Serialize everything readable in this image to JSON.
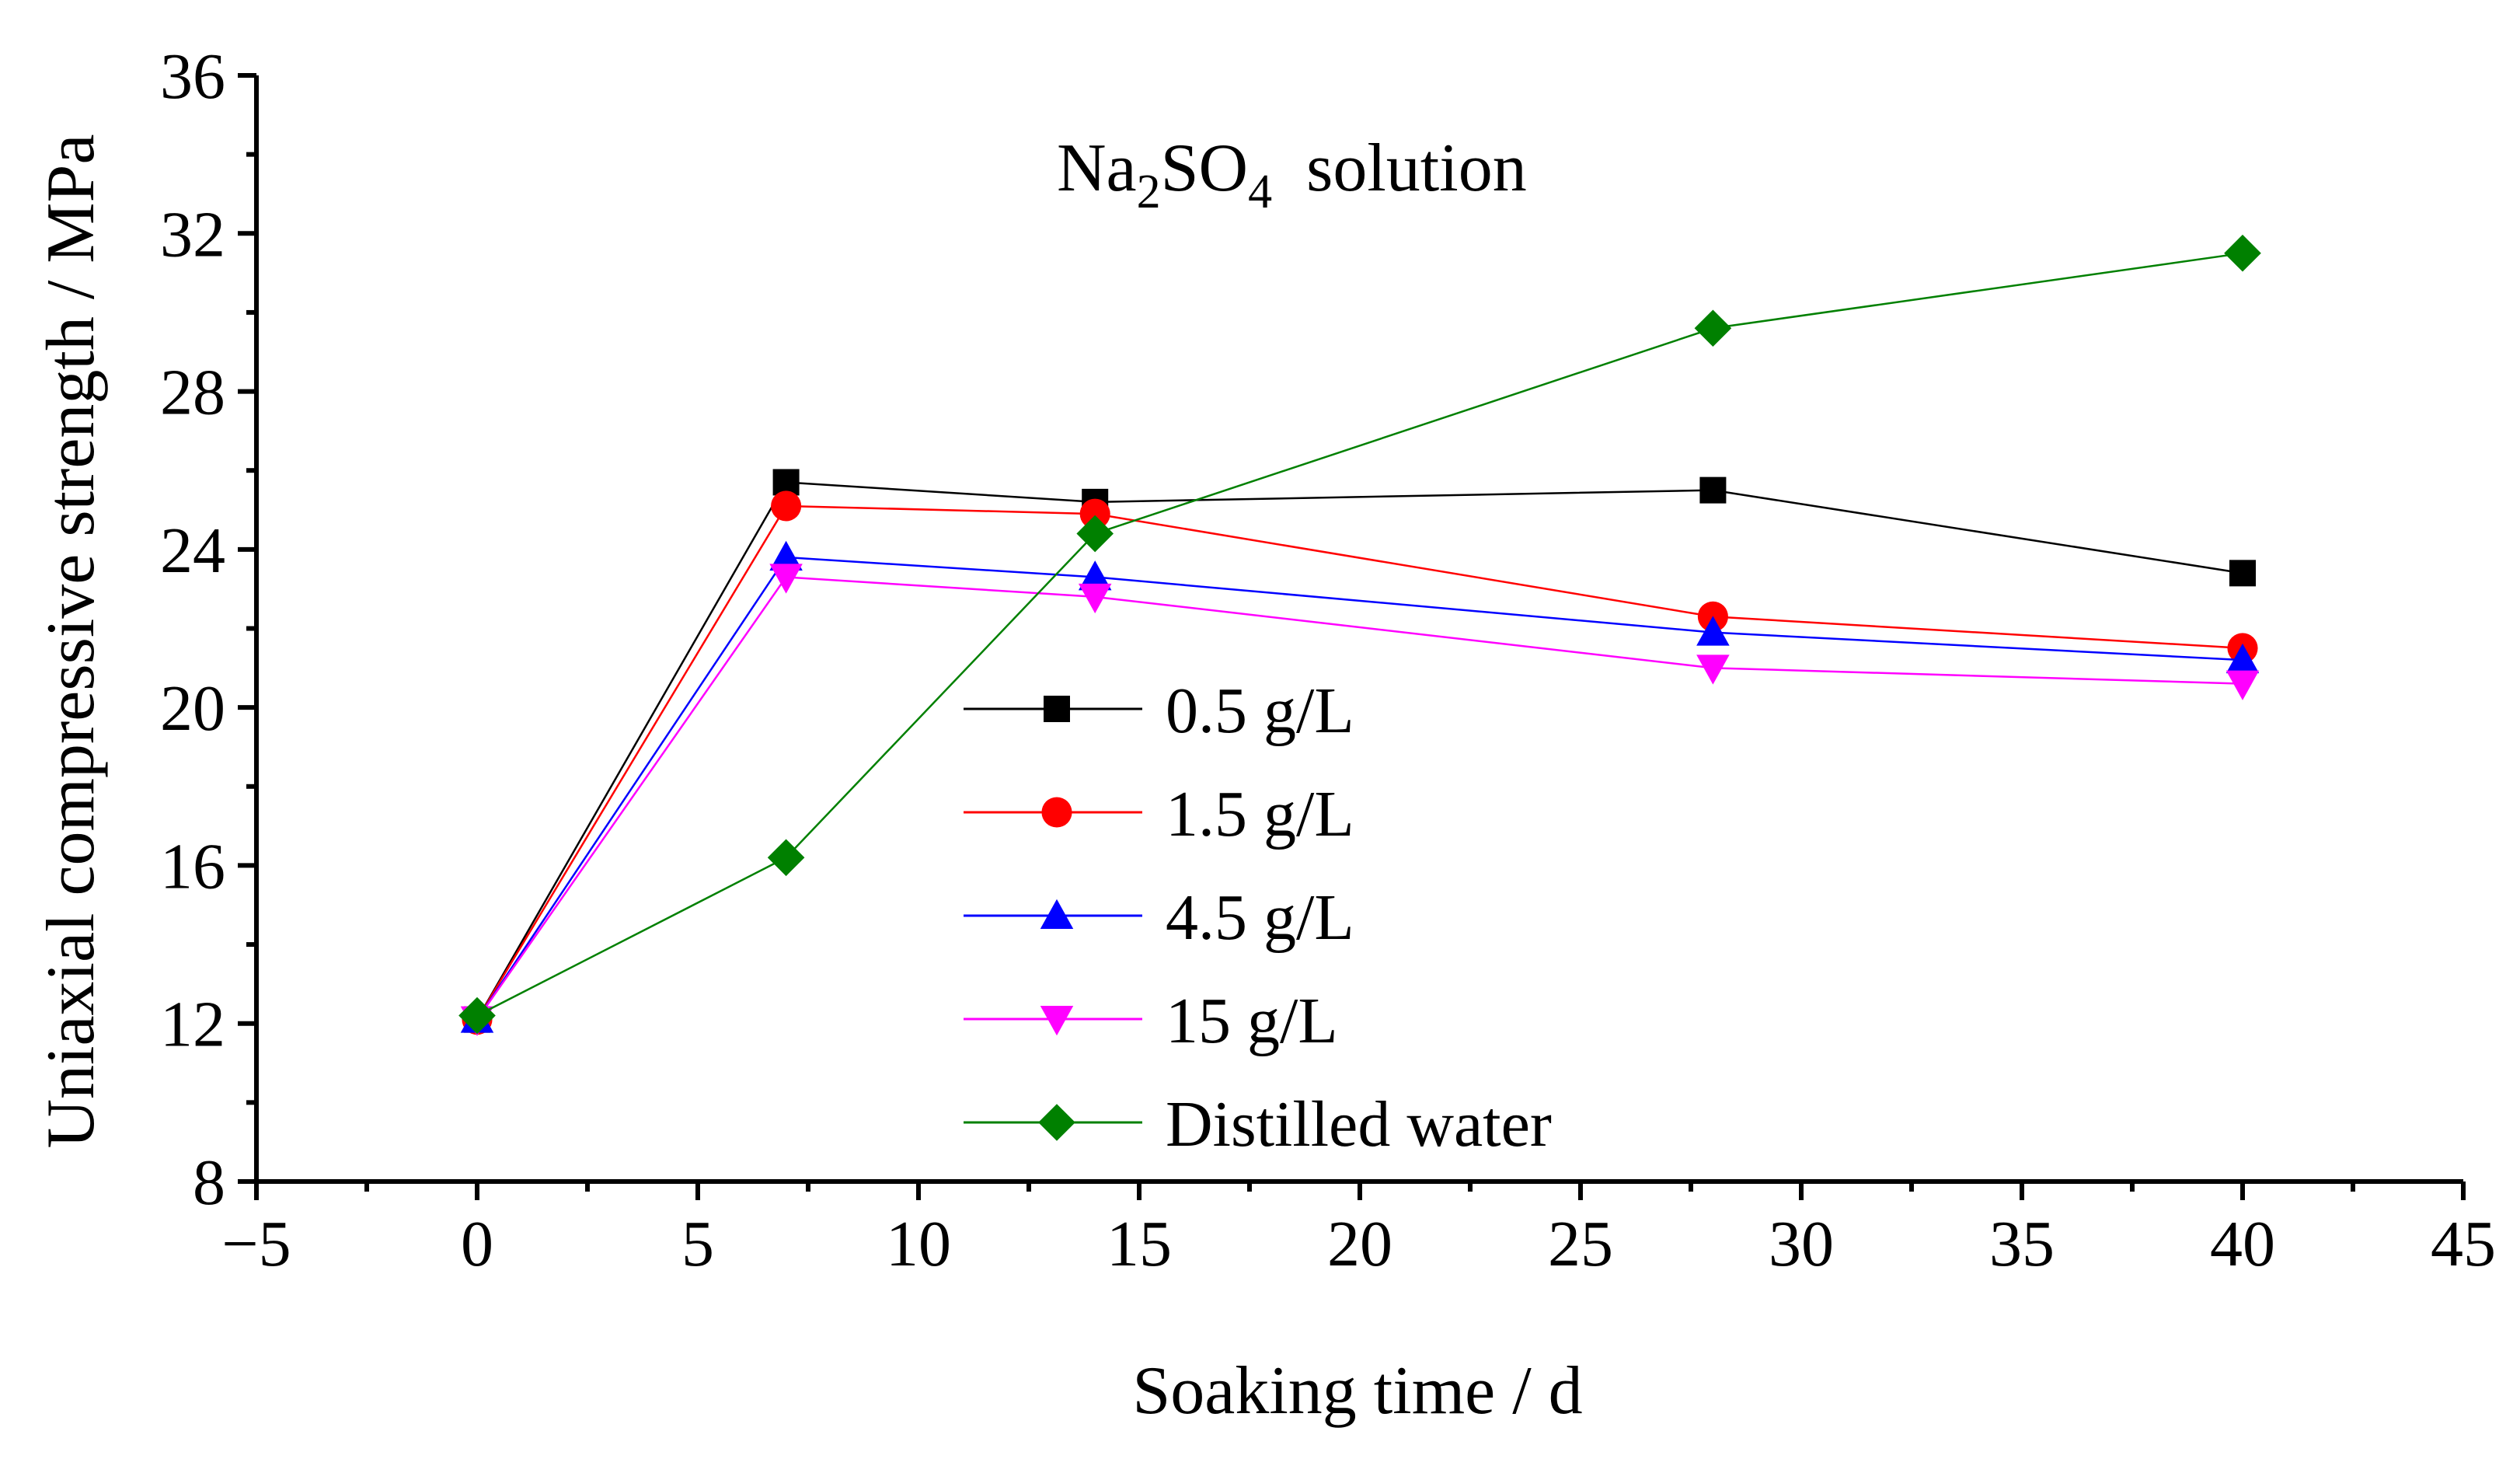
{
  "chart_data": {
    "type": "line",
    "title": "",
    "annotation": {
      "main": "Na",
      "sub1": "2",
      "mid": "SO",
      "sub2": "4",
      "tail": "  solution"
    },
    "xlabel": "Soaking time / d",
    "ylabel": "Uniaxial compressive strength  / MPa",
    "xlim": [
      -5,
      45
    ],
    "ylim": [
      8,
      36
    ],
    "xticks": [
      -5,
      0,
      5,
      10,
      15,
      20,
      25,
      30,
      35,
      40,
      45
    ],
    "xtick_labels": [
      "−5",
      "0",
      "5",
      "10",
      "15",
      "20",
      "25",
      "30",
      "35",
      "40",
      "45"
    ],
    "yticks": [
      8,
      12,
      16,
      20,
      24,
      28,
      32,
      36
    ],
    "ytick_labels": [
      "8",
      "12",
      "16",
      "20",
      "24",
      "28",
      "32",
      "36"
    ],
    "legend_position": "center",
    "x": [
      0,
      7,
      14,
      28,
      40
    ],
    "series": [
      {
        "name": "0.5 g/L",
        "color": "#000000",
        "marker": "square",
        "values": [
          12.1,
          25.7,
          25.2,
          25.5,
          23.4
        ]
      },
      {
        "name": "1.5 g/L",
        "color": "#ff0000",
        "marker": "circle",
        "values": [
          12.1,
          25.1,
          24.9,
          22.3,
          21.5
        ]
      },
      {
        "name": "4.5 g/L",
        "color": "#0000ff",
        "marker": "triangle-up",
        "values": [
          12.1,
          23.8,
          23.3,
          21.9,
          21.2
        ]
      },
      {
        "name": "15 g/L",
        "color": "#ff00ff",
        "marker": "triangle-down",
        "values": [
          12.1,
          23.3,
          22.8,
          21.0,
          20.6
        ]
      },
      {
        "name": "Distilled water",
        "color": "#008000",
        "marker": "diamond",
        "values": [
          12.2,
          16.2,
          24.4,
          29.6,
          31.5
        ]
      }
    ]
  }
}
